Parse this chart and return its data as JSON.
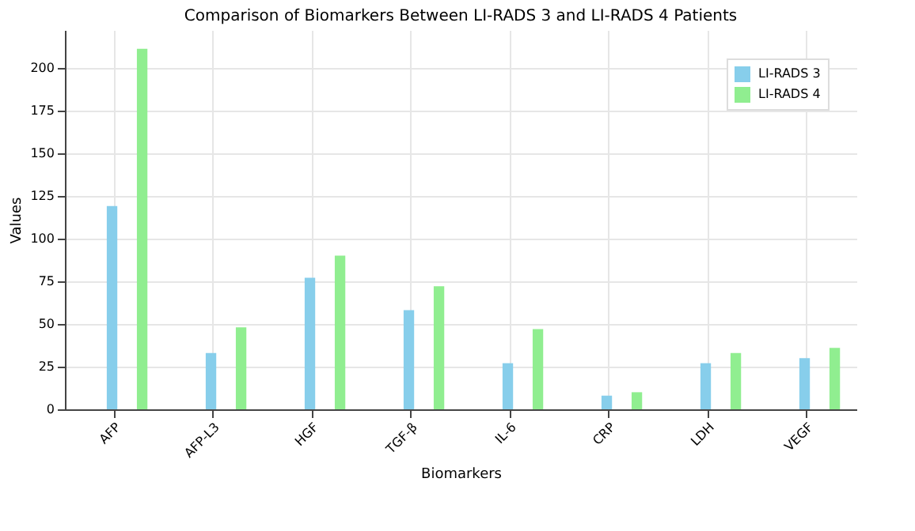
{
  "chart_data": {
    "type": "bar",
    "title": "Comparison of Biomarkers Between LI-RADS 3 and LI-RADS 4 Patients",
    "xlabel": "Biomarkers",
    "ylabel": "Values",
    "categories": [
      "AFP",
      "AFP-L3",
      "HGF",
      "TGF-β",
      "IL-6",
      "CRP",
      "LDH",
      "VEGF"
    ],
    "series": [
      {
        "name": "LI-RADS 3",
        "color": "#87ceeb",
        "values": [
          119,
          33,
          77,
          58,
          27,
          8,
          27,
          30
        ]
      },
      {
        "name": "LI-RADS 4",
        "color": "#90ee90",
        "values": [
          211,
          48,
          90,
          72,
          47,
          10,
          33,
          36
        ]
      }
    ],
    "ylim": [
      0,
      222
    ],
    "yticks": [
      0,
      25,
      50,
      75,
      100,
      125,
      150,
      175,
      200
    ],
    "grid": true,
    "legend": "top right"
  }
}
